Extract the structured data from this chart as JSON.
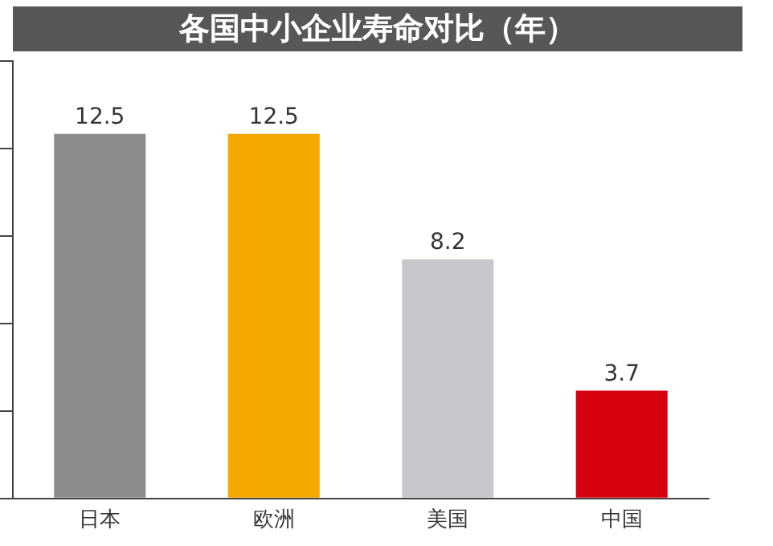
{
  "chart_data": {
    "type": "bar",
    "title": "各国中小企业寿命对比（年）",
    "categories": [
      "日本",
      "欧洲",
      "美国",
      "中国"
    ],
    "values": [
      12.5,
      12.5,
      8.2,
      3.7
    ],
    "colors": [
      "#8c8c8c",
      "#f5a800",
      "#c8c8cc",
      "#d7000f"
    ],
    "ylim": [
      0,
      15
    ],
    "yticks": [
      {
        "value": 0,
        "label": null
      },
      {
        "value": 3,
        "label": null
      },
      {
        "value": 6,
        "label": null
      },
      {
        "value": 9,
        "label": null
      },
      {
        "value": 12,
        "label": null
      },
      {
        "value": 15,
        "label": null
      }
    ],
    "tick_labels": "x",
    "grid": false,
    "legend": false,
    "data_labels": true
  }
}
